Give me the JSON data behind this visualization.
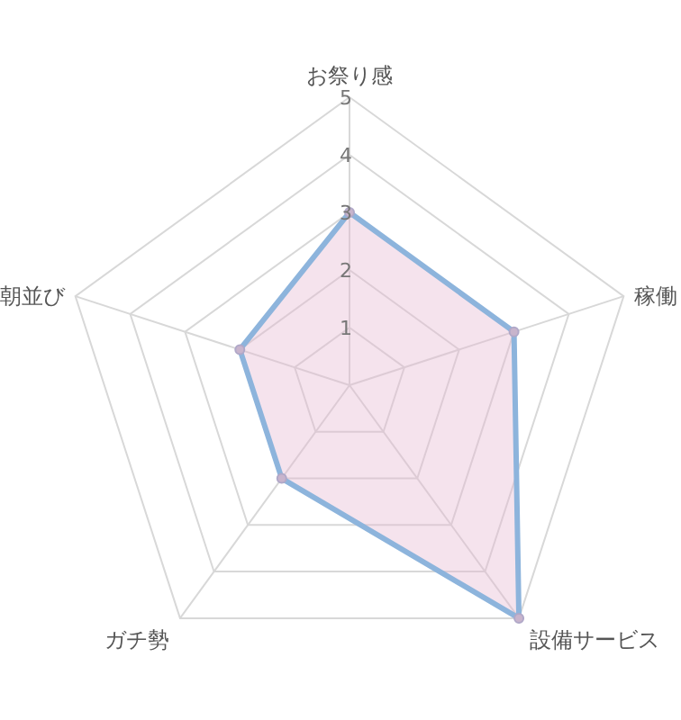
{
  "chart_data": {
    "type": "radar",
    "categories": [
      "お祭り感",
      "稼働",
      "設備サービス",
      "ガチ勢",
      "朝並び"
    ],
    "series": [
      {
        "color": "#8db4dc",
        "values": [
          3,
          3,
          5,
          2,
          2
        ]
      }
    ],
    "ylim": [
      0,
      5
    ],
    "yticks": [
      1,
      2,
      3,
      4,
      5
    ],
    "grid": true,
    "marker": "circle"
  }
}
